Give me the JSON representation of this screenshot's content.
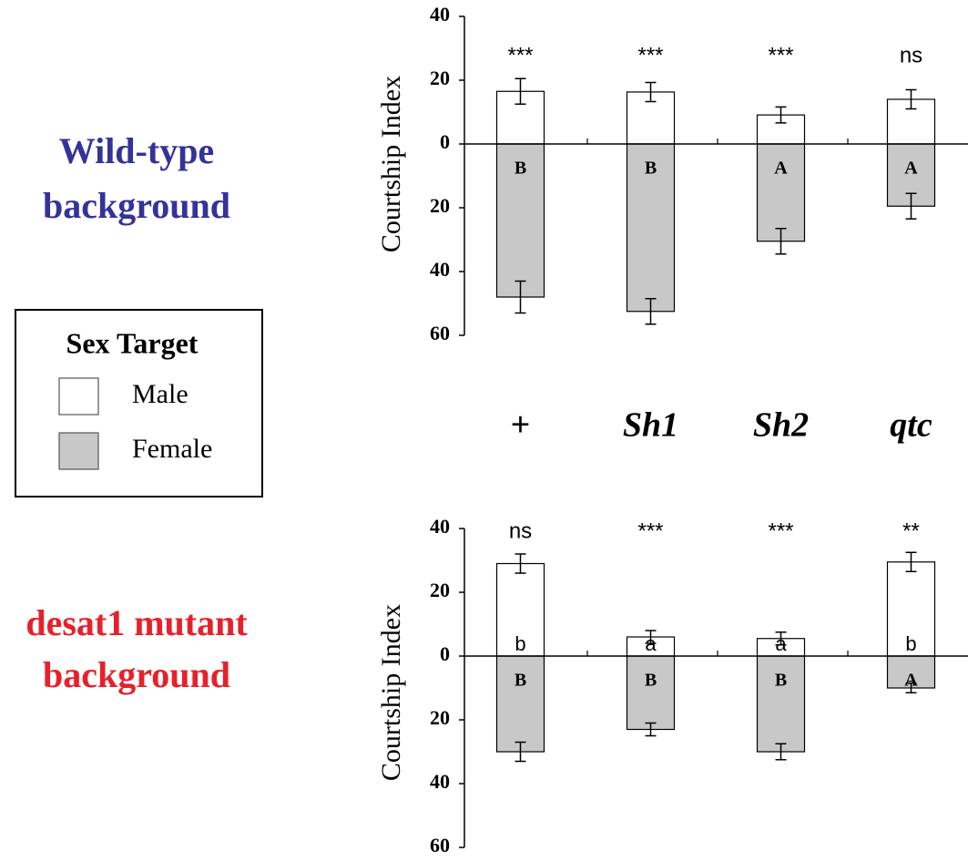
{
  "chart_data": [
    {
      "type": "bar",
      "panel_label": [
        "Wild-type",
        "background"
      ],
      "panel_color": "#333399",
      "ylabel": "Courtship Index",
      "categories": [
        "+",
        "Sh1",
        "Sh2",
        "qtc"
      ],
      "ylim": [
        -60,
        40
      ],
      "yticks": [
        40,
        20,
        0,
        {
          "value": -20,
          "label": "20"
        },
        {
          "value": -40,
          "label": "40"
        },
        {
          "value": -60,
          "label": "60"
        }
      ],
      "series": [
        {
          "name": "Male",
          "color": "#ffffff",
          "values": [
            16.5,
            16.3,
            9.1,
            14
          ],
          "errors": [
            4,
            3,
            2.5,
            3
          ]
        },
        {
          "name": "Female",
          "color": "#c8c8c8",
          "values": [
            -48,
            -52.5,
            -30.5,
            -19.5
          ],
          "errors": [
            5,
            4,
            4,
            4
          ],
          "letters": [
            "B",
            "B",
            "A",
            "A"
          ]
        }
      ],
      "significance": [
        "***",
        "***",
        "***",
        "ns"
      ]
    },
    {
      "type": "bar",
      "panel_label": [
        "desat1 mutant",
        "background"
      ],
      "panel_color": "#e8202a",
      "ylabel": "Courtship Index",
      "ylim": [
        -60,
        40
      ],
      "yticks": [
        40,
        20,
        0,
        {
          "value": -20,
          "label": "20"
        },
        {
          "value": -40,
          "label": "40"
        },
        {
          "value": -60,
          "label": "60"
        }
      ],
      "series": [
        {
          "name": "Male",
          "color": "#ffffff",
          "values": [
            29,
            6,
            5.5,
            29.5
          ],
          "errors": [
            3,
            2,
            2,
            3
          ],
          "letters": [
            "b",
            "a",
            "a",
            "b"
          ]
        },
        {
          "name": "Female",
          "color": "#c8c8c8",
          "values": [
            -30,
            -23,
            -30,
            -10
          ],
          "errors": [
            3,
            2,
            2.5,
            1.5
          ],
          "letters": [
            "B",
            "B",
            "B",
            "A"
          ]
        }
      ],
      "significance": [
        "ns",
        "***",
        "***",
        "**"
      ]
    }
  ],
  "legend": {
    "title": "Sex Target"
  }
}
